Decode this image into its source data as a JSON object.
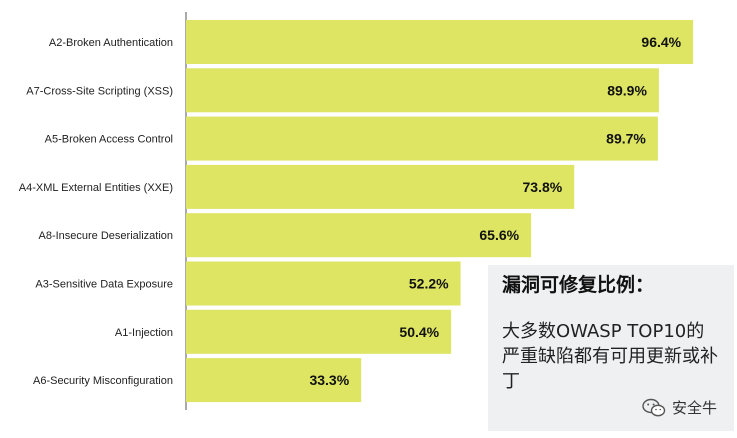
{
  "chart_data": {
    "type": "bar",
    "orientation": "horizontal",
    "categories": [
      "A2-Broken Authentication",
      "A7-Cross-Site Scripting (XSS)",
      "A5-Broken Access Control",
      "A4-XML External Entities (XXE)",
      "A8-Insecure Deserialization",
      "A3-Sensitive Data Exposure",
      "A1-Injection",
      "A6-Security Misconfiguration"
    ],
    "values": [
      96.4,
      89.9,
      89.7,
      73.8,
      65.6,
      52.2,
      50.4,
      33.3
    ],
    "value_labels": [
      "96.4%",
      "89.9%",
      "89.7%",
      "73.8%",
      "65.6%",
      "52.2%",
      "50.4%",
      "33.3%"
    ],
    "xlim": [
      0,
      100
    ],
    "grid": false,
    "bar_color": "#dde563",
    "axis_color": "#555555"
  },
  "annotation": {
    "title": "漏洞可修复比例：",
    "body": "大多数OWASP TOP10的严重缺陷都有可用更新或补丁"
  },
  "watermark": {
    "text": "安全牛",
    "icon": "wechat-icon"
  }
}
